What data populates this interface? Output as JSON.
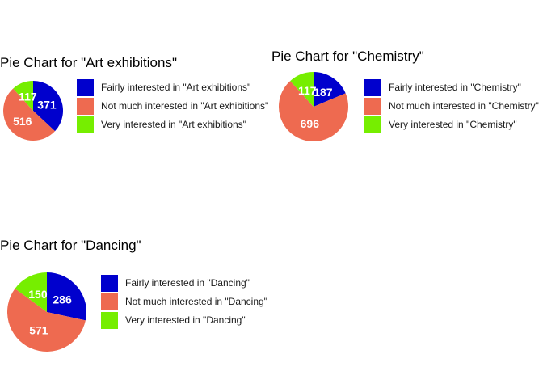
{
  "colors": {
    "fairly": "#0000cd",
    "not_much": "#ee6a50",
    "very": "#76ee00"
  },
  "chart_data": [
    {
      "type": "pie",
      "title": "Pie Chart for \"Art exhibitions\"",
      "slices": [
        {
          "category": "Fairly interested in \"Art exhibitions\"",
          "value": 371,
          "label": "371",
          "color_key": "fairly"
        },
        {
          "category": "Not much interested in \"Art exhibitions\"",
          "value": 516,
          "label": "516",
          "color_key": "not_much"
        },
        {
          "category": "Very interested in \"Art exhibitions\"",
          "value": 117,
          "label": "117",
          "color_key": "very"
        }
      ],
      "legend": [
        {
          "label": "Fairly interested in \"Art exhibitions\"",
          "color_key": "fairly"
        },
        {
          "label": "Not much interested in \"Art exhibitions\"",
          "color_key": "not_much"
        },
        {
          "label": "Very interested in \"Art exhibitions\"",
          "color_key": "very"
        }
      ],
      "legend_position": "right"
    },
    {
      "type": "pie",
      "title": "Pie Chart for \"Chemistry\"",
      "slices": [
        {
          "category": "Fairly interested in \"Chemistry\"",
          "value": 187,
          "label": "187",
          "color_key": "fairly"
        },
        {
          "category": "Not much interested in \"Chemistry\"",
          "value": 696,
          "label": "696",
          "color_key": "not_much"
        },
        {
          "category": "Very interested in \"Chemistry\"",
          "value": 117,
          "label": "117",
          "color_key": "very"
        }
      ],
      "legend": [
        {
          "label": "Fairly interested in \"Chemistry\"",
          "color_key": "fairly"
        },
        {
          "label": "Not much interested in \"Chemistry\"",
          "color_key": "not_much"
        },
        {
          "label": "Very interested in \"Chemistry\"",
          "color_key": "very"
        }
      ],
      "legend_position": "right"
    },
    {
      "type": "pie",
      "title": "Pie Chart for \"Dancing\"",
      "slices": [
        {
          "category": "Fairly interested in \"Dancing\"",
          "value": 286,
          "label": "286",
          "color_key": "fairly"
        },
        {
          "category": "Not much interested in \"Dancing\"",
          "value": 571,
          "label": "571",
          "color_key": "not_much"
        },
        {
          "category": "Very interested in \"Dancing\"",
          "value": 150,
          "label": "150",
          "color_key": "very"
        }
      ],
      "legend": [
        {
          "label": "Fairly interested in \"Dancing\"",
          "color_key": "fairly"
        },
        {
          "label": "Not much interested in \"Dancing\"",
          "color_key": "not_much"
        },
        {
          "label": "Very interested in \"Dancing\"",
          "color_key": "very"
        }
      ],
      "legend_position": "right"
    }
  ]
}
